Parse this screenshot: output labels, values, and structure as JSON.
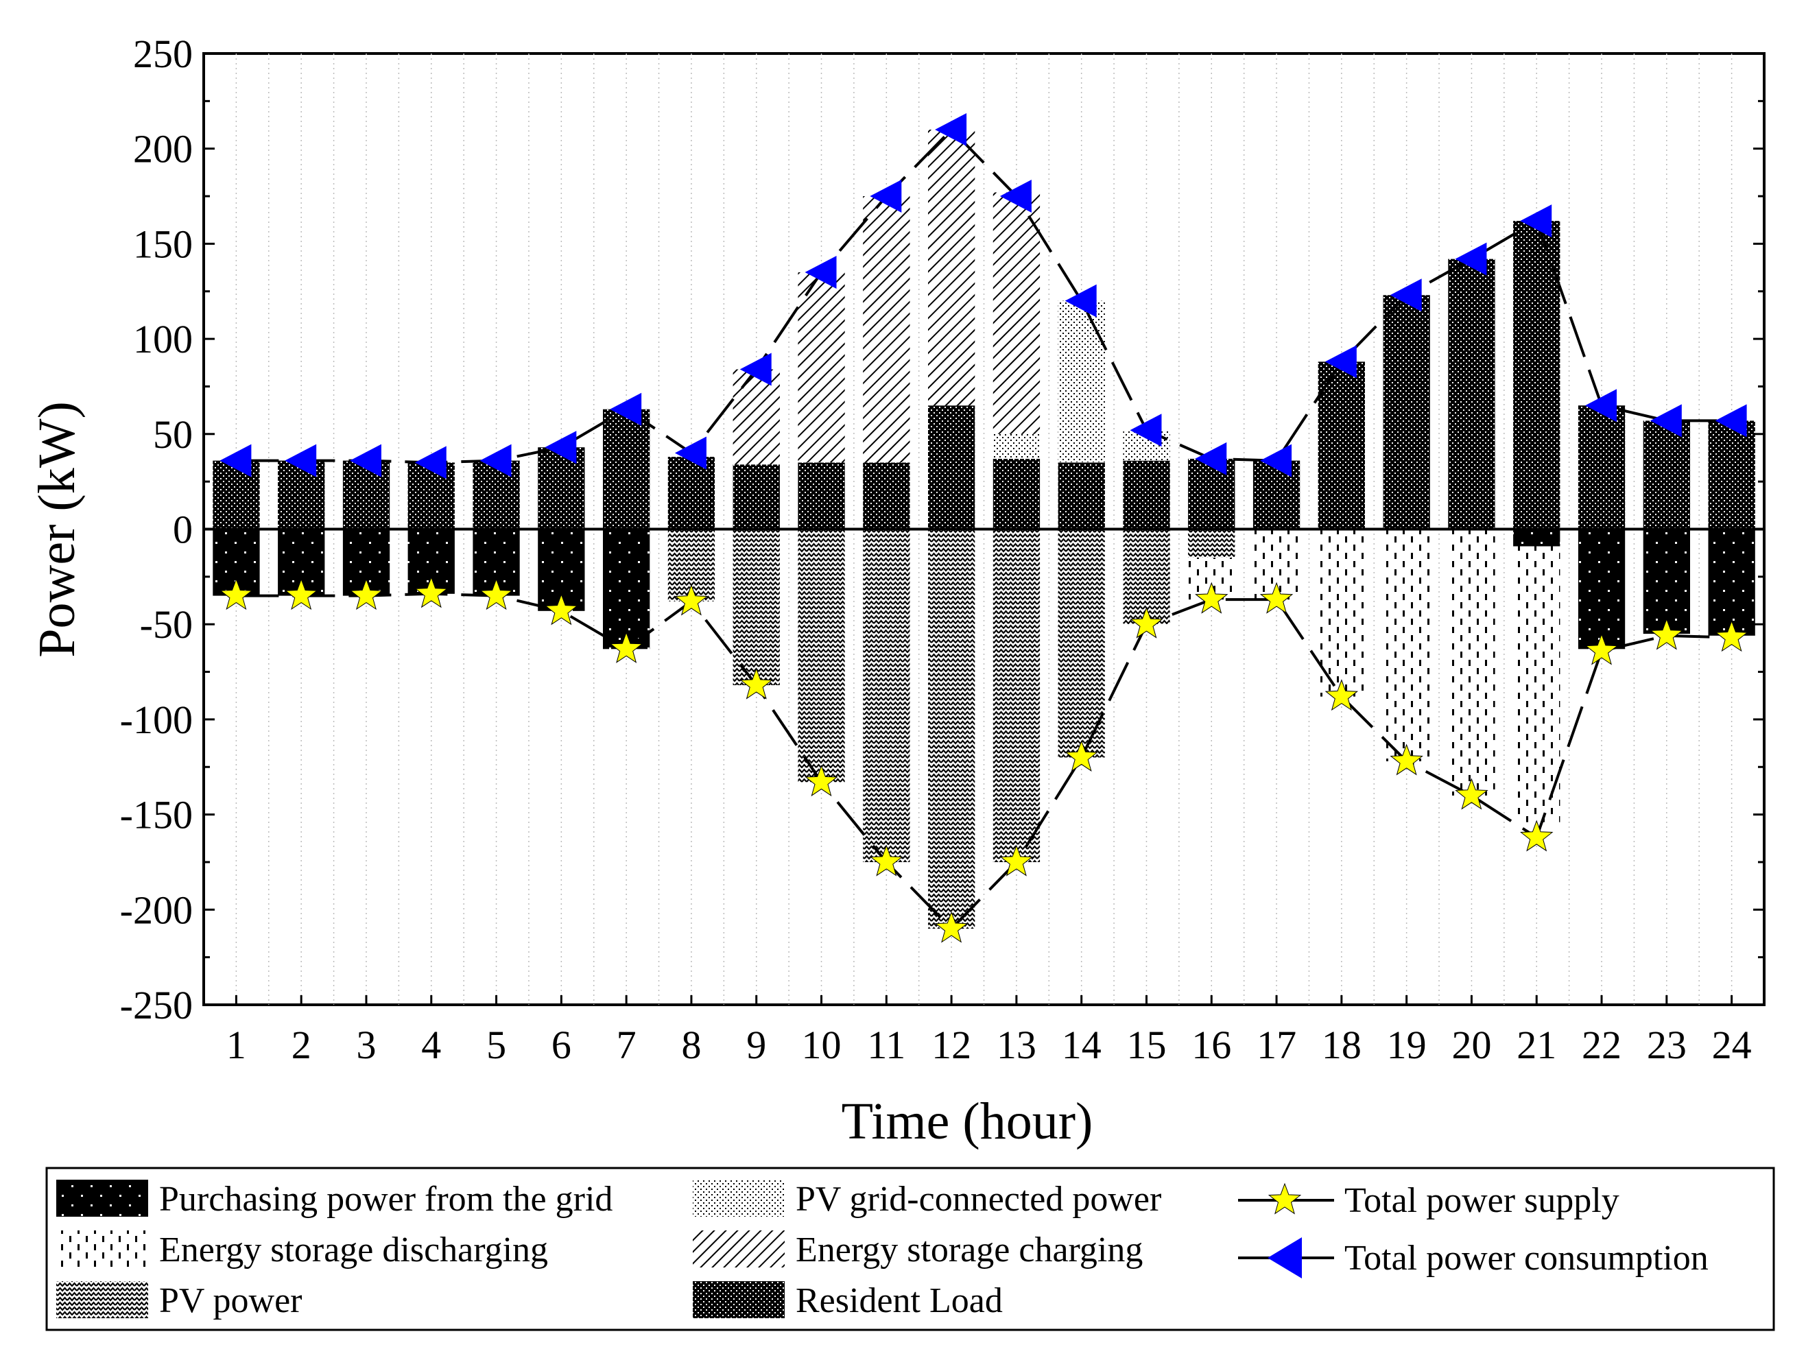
{
  "chart_data": {
    "type": "bar",
    "stacking": "diverging",
    "title": "",
    "xlabel": "Time (hour)",
    "ylabel": "Power (kW)",
    "ylim": [
      -250,
      250
    ],
    "y_major_ticks": [
      -250,
      -200,
      -150,
      -100,
      -50,
      0,
      50,
      100,
      150,
      200,
      250
    ],
    "grid": "vertical-dotted",
    "legend_position": "bottom",
    "categories": [
      "1",
      "2",
      "3",
      "4",
      "5",
      "6",
      "7",
      "8",
      "9",
      "10",
      "11",
      "12",
      "13",
      "14",
      "15",
      "16",
      "17",
      "18",
      "19",
      "20",
      "21",
      "22",
      "23",
      "24"
    ],
    "bar_series": [
      {
        "name": "Resident Load",
        "key": "resident",
        "side": "positive",
        "pattern": "res",
        "values": [
          36,
          36,
          36,
          35,
          36,
          43,
          63,
          38,
          34,
          35,
          35,
          65,
          37,
          35,
          36,
          37,
          36,
          88,
          123,
          142,
          162,
          65,
          57,
          57
        ]
      },
      {
        "name": "PV grid-connected power",
        "key": "pvgrid",
        "side": "positive",
        "pattern": "pvgrid",
        "values": [
          0,
          0,
          0,
          0,
          0,
          0,
          0,
          0,
          0,
          0,
          0,
          0,
          13,
          85,
          16,
          0,
          0,
          0,
          0,
          0,
          0,
          0,
          0,
          0
        ]
      },
      {
        "name": "Energy storage charging",
        "key": "charge",
        "side": "positive",
        "pattern": "charge",
        "values": [
          0,
          0,
          0,
          0,
          0,
          0,
          0,
          0,
          50,
          100,
          140,
          145,
          127,
          0,
          0,
          0,
          0,
          0,
          0,
          0,
          0,
          0,
          0,
          0
        ]
      },
      {
        "name": "Purchasing power from the grid",
        "key": "purchase",
        "side": "negative",
        "pattern": "purchase",
        "values": [
          35,
          35,
          35,
          34,
          35,
          43,
          63,
          0,
          0,
          0,
          0,
          0,
          0,
          0,
          0,
          0,
          0,
          0,
          0,
          0,
          9,
          63,
          55,
          56
        ]
      },
      {
        "name": "PV power",
        "key": "pv",
        "side": "negative",
        "pattern": "pv",
        "values": [
          0,
          0,
          0,
          0,
          0,
          0,
          0,
          38,
          82,
          133,
          175,
          210,
          175,
          120,
          50,
          15,
          0,
          0,
          0,
          0,
          0,
          0,
          0,
          0
        ]
      },
      {
        "name": "Energy storage discharging",
        "key": "discharge",
        "side": "negative",
        "pattern": "discharge",
        "values": [
          0,
          0,
          0,
          0,
          0,
          0,
          0,
          0,
          0,
          0,
          0,
          0,
          0,
          0,
          0,
          22,
          37,
          88,
          122,
          140,
          145,
          0,
          0,
          0
        ]
      }
    ],
    "line_series": [
      {
        "name": "Total power supply",
        "key": "supply",
        "marker": "star",
        "color": "#FFFF00",
        "values": [
          -35,
          -35,
          -35,
          -34,
          -35,
          -43,
          -63,
          -38,
          -82,
          -133,
          -175,
          -210,
          -175,
          -120,
          -50,
          -37,
          -37,
          -88,
          -122,
          -140,
          -162,
          -64,
          -56,
          -57
        ]
      },
      {
        "name": "Total power consumption",
        "key": "consumption",
        "marker": "triangle-left",
        "color": "#0000FF",
        "values": [
          36,
          36,
          36,
          35,
          36,
          43,
          63,
          40,
          84,
          135,
          175,
          210,
          175,
          120,
          52,
          37,
          36,
          88,
          123,
          142,
          162,
          65,
          57,
          57
        ]
      }
    ]
  },
  "legend": {
    "col1": [
      "Purchasing power from the grid",
      "Energy storage discharging",
      "PV power"
    ],
    "col2": [
      "PV grid-connected power",
      "Energy storage charging",
      "Resident Load"
    ],
    "col3": [
      "Total power supply",
      "Total power consumption"
    ]
  },
  "colors": {
    "axis": "#000000",
    "bar_fill": "#000000",
    "star": "#FFFF00",
    "triangle": "#0000FF",
    "grid": "#bbbbbb"
  }
}
